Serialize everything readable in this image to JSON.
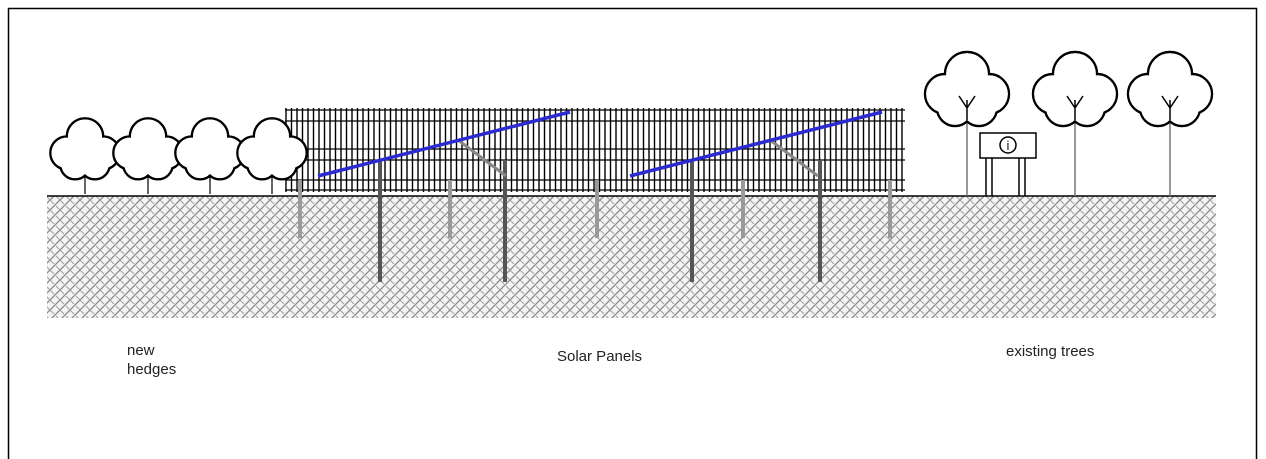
{
  "labels": [
    {
      "lines": [
        "new",
        "hedges"
      ]
    },
    {
      "lines": [
        "Solar Panels"
      ]
    },
    {
      "lines": [
        "existing trees"
      ]
    }
  ],
  "sign": {
    "text": "i"
  }
}
